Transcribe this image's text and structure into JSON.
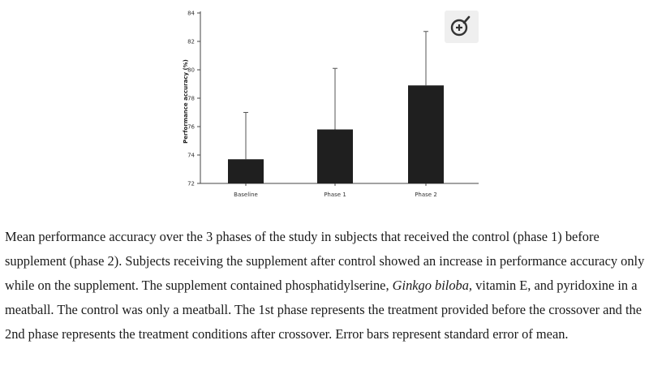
{
  "chart_data": {
    "type": "bar",
    "categories": [
      "Baseline",
      "Phase 1",
      "Phase 2"
    ],
    "values": [
      73.7,
      75.8,
      78.9
    ],
    "errors": [
      3.3,
      4.3,
      3.8
    ],
    "ylabel": "Performance accuracy (%)",
    "xlabel": "",
    "ylim": [
      72,
      84
    ],
    "yticks": [
      72,
      74,
      76,
      78,
      80,
      82,
      84
    ],
    "bar_color": "#1f1f1f",
    "grid": false
  },
  "zoom_icon": "zoom-in-icon",
  "caption": {
    "part1": "Mean performance accuracy over the 3 phases of the study in subjects that received the control (phase 1) before supplement (phase 2). Subjects receiving the supplement after control showed an increase in performance accuracy only while on the supplement. The supplement contained phosphatidylserine, ",
    "italic": "Ginkgo biloba,",
    "part2": " vitamin E, and pyridoxine in a meatball. The control was only a meatball. The 1st phase represents the treatment provided before the crossover and the 2nd phase represents the treatment conditions after crossover. Error bars represent standard error of mean."
  }
}
